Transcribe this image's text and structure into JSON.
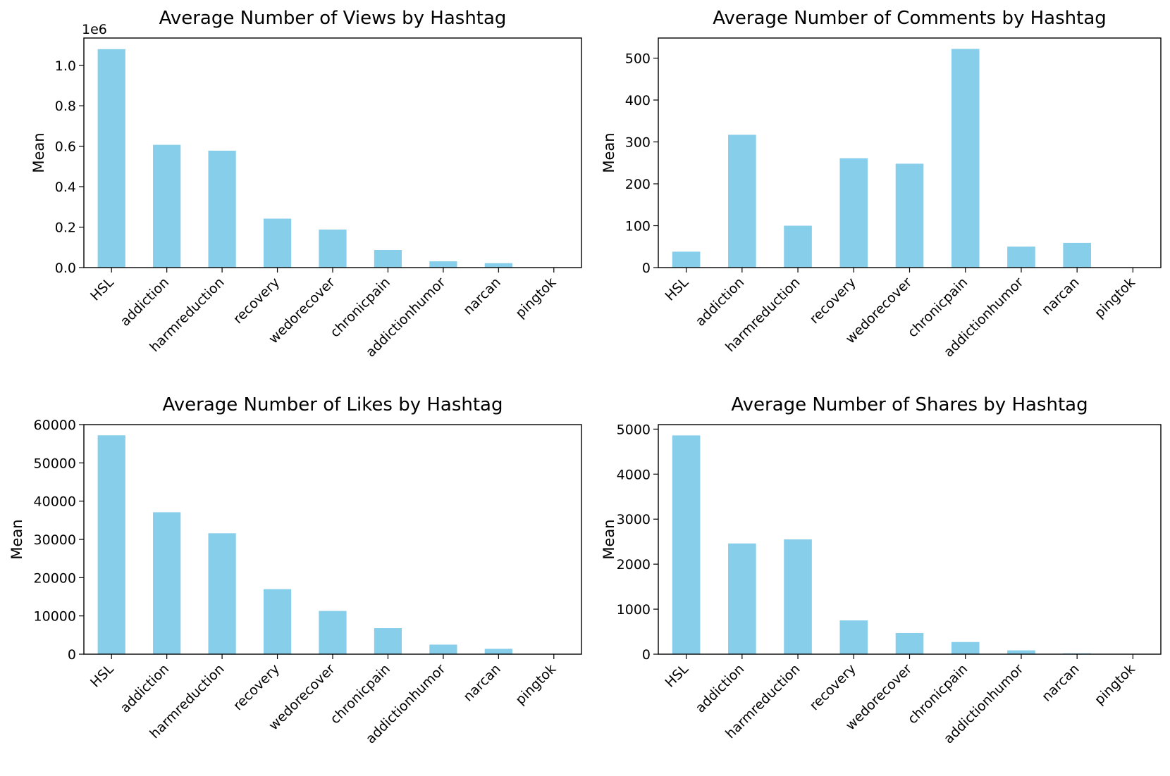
{
  "chart_data": [
    {
      "type": "bar",
      "title": "Average Number of Views by Hashtag",
      "xlabel": "",
      "ylabel": "Mean",
      "offset_text": "1e6",
      "categories": [
        "HSL",
        "addiction",
        "harmreduction",
        "recovery",
        "wedorecover",
        "chronicpain",
        "addictionhumor",
        "narcan",
        "pingtok"
      ],
      "values": [
        1080000,
        607000,
        578000,
        242000,
        188000,
        87000,
        31000,
        22000,
        0
      ],
      "ylim": [
        0,
        1135000
      ],
      "ytick_values": [
        0,
        200000,
        400000,
        600000,
        800000,
        1000000
      ],
      "ytick_labels": [
        "0.0",
        "0.2",
        "0.4",
        "0.6",
        "0.8",
        "1.0"
      ],
      "color": "#87CEEB"
    },
    {
      "type": "bar",
      "title": "Average Number of Comments by Hashtag",
      "xlabel": "",
      "ylabel": "Mean",
      "categories": [
        "HSL",
        "addiction",
        "harmreduction",
        "recovery",
        "wedorecover",
        "chronicpain",
        "addictionhumor",
        "narcan",
        "pingtok"
      ],
      "values": [
        38,
        317,
        100,
        261,
        248,
        522,
        50,
        59,
        0
      ],
      "ylim": [
        0,
        548
      ],
      "ytick_values": [
        0,
        100,
        200,
        300,
        400,
        500
      ],
      "ytick_labels": [
        "0",
        "100",
        "200",
        "300",
        "400",
        "500"
      ],
      "color": "#87CEEB"
    },
    {
      "type": "bar",
      "title": "Average Number of Likes by Hashtag",
      "xlabel": "",
      "ylabel": "Mean",
      "categories": [
        "HSL",
        "addiction",
        "harmreduction",
        "recovery",
        "wedorecover",
        "chronicpain",
        "addictionhumor",
        "narcan",
        "pingtok"
      ],
      "values": [
        57200,
        37100,
        31600,
        17000,
        11300,
        6800,
        2500,
        1400,
        0
      ],
      "ylim": [
        0,
        60000
      ],
      "ytick_values": [
        0,
        10000,
        20000,
        30000,
        40000,
        50000,
        60000
      ],
      "ytick_labels": [
        "0",
        "10000",
        "20000",
        "30000",
        "40000",
        "50000",
        "60000"
      ],
      "color": "#87CEEB"
    },
    {
      "type": "bar",
      "title": "Average Number of Shares by Hashtag",
      "xlabel": "",
      "ylabel": "Mean",
      "categories": [
        "HSL",
        "addiction",
        "harmreduction",
        "recovery",
        "wedorecover",
        "chronicpain",
        "addictionhumor",
        "narcan",
        "pingtok"
      ],
      "values": [
        4860,
        2460,
        2550,
        750,
        470,
        270,
        85,
        18,
        0
      ],
      "ylim": [
        0,
        5100
      ],
      "ytick_values": [
        0,
        1000,
        2000,
        3000,
        4000,
        5000
      ],
      "ytick_labels": [
        "0",
        "1000",
        "2000",
        "3000",
        "4000",
        "5000"
      ],
      "color": "#87CEEB"
    }
  ]
}
